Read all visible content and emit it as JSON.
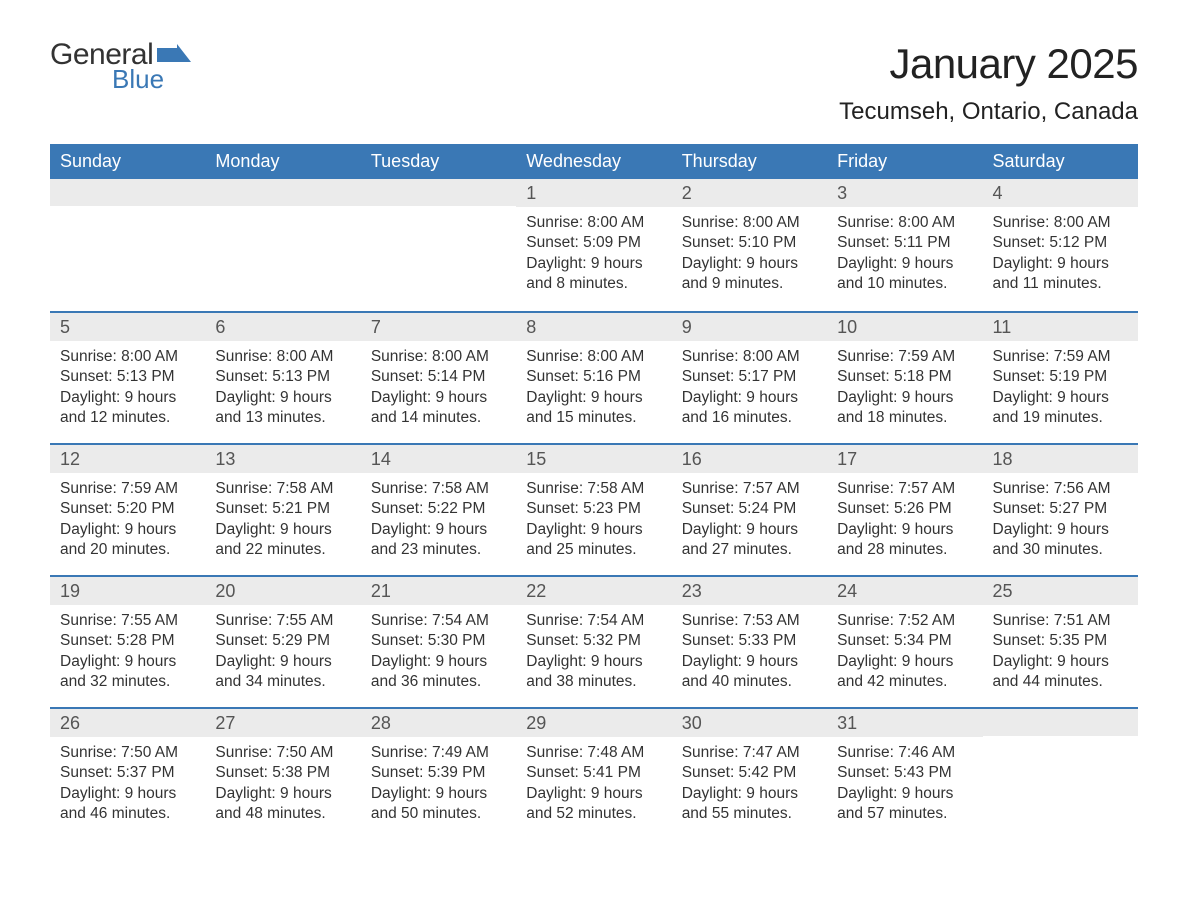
{
  "logo": {
    "word1": "General",
    "word2": "Blue",
    "flag_color": "#3a78b5"
  },
  "title": "January 2025",
  "location": "Tecumseh, Ontario, Canada",
  "colors": {
    "header_bg": "#3a78b5",
    "header_text": "#ffffff",
    "daynum_bg": "#ebebeb",
    "daynum_text": "#555555",
    "body_text": "#333333",
    "row_border": "#3a78b5",
    "page_bg": "#ffffff"
  },
  "typography": {
    "title_fontsize": 42,
    "location_fontsize": 24,
    "dow_fontsize": 18,
    "daynum_fontsize": 18,
    "content_fontsize": 15.5
  },
  "days_of_week": [
    "Sunday",
    "Monday",
    "Tuesday",
    "Wednesday",
    "Thursday",
    "Friday",
    "Saturday"
  ],
  "labels": {
    "sunrise": "Sunrise:",
    "sunset": "Sunset:",
    "daylight": "Daylight:"
  },
  "weeks": [
    [
      {
        "num": "",
        "sunrise": "",
        "sunset": "",
        "daylight": ""
      },
      {
        "num": "",
        "sunrise": "",
        "sunset": "",
        "daylight": ""
      },
      {
        "num": "",
        "sunrise": "",
        "sunset": "",
        "daylight": ""
      },
      {
        "num": "1",
        "sunrise": "8:00 AM",
        "sunset": "5:09 PM",
        "daylight": "9 hours and 8 minutes."
      },
      {
        "num": "2",
        "sunrise": "8:00 AM",
        "sunset": "5:10 PM",
        "daylight": "9 hours and 9 minutes."
      },
      {
        "num": "3",
        "sunrise": "8:00 AM",
        "sunset": "5:11 PM",
        "daylight": "9 hours and 10 minutes."
      },
      {
        "num": "4",
        "sunrise": "8:00 AM",
        "sunset": "5:12 PM",
        "daylight": "9 hours and 11 minutes."
      }
    ],
    [
      {
        "num": "5",
        "sunrise": "8:00 AM",
        "sunset": "5:13 PM",
        "daylight": "9 hours and 12 minutes."
      },
      {
        "num": "6",
        "sunrise": "8:00 AM",
        "sunset": "5:13 PM",
        "daylight": "9 hours and 13 minutes."
      },
      {
        "num": "7",
        "sunrise": "8:00 AM",
        "sunset": "5:14 PM",
        "daylight": "9 hours and 14 minutes."
      },
      {
        "num": "8",
        "sunrise": "8:00 AM",
        "sunset": "5:16 PM",
        "daylight": "9 hours and 15 minutes."
      },
      {
        "num": "9",
        "sunrise": "8:00 AM",
        "sunset": "5:17 PM",
        "daylight": "9 hours and 16 minutes."
      },
      {
        "num": "10",
        "sunrise": "7:59 AM",
        "sunset": "5:18 PM",
        "daylight": "9 hours and 18 minutes."
      },
      {
        "num": "11",
        "sunrise": "7:59 AM",
        "sunset": "5:19 PM",
        "daylight": "9 hours and 19 minutes."
      }
    ],
    [
      {
        "num": "12",
        "sunrise": "7:59 AM",
        "sunset": "5:20 PM",
        "daylight": "9 hours and 20 minutes."
      },
      {
        "num": "13",
        "sunrise": "7:58 AM",
        "sunset": "5:21 PM",
        "daylight": "9 hours and 22 minutes."
      },
      {
        "num": "14",
        "sunrise": "7:58 AM",
        "sunset": "5:22 PM",
        "daylight": "9 hours and 23 minutes."
      },
      {
        "num": "15",
        "sunrise": "7:58 AM",
        "sunset": "5:23 PM",
        "daylight": "9 hours and 25 minutes."
      },
      {
        "num": "16",
        "sunrise": "7:57 AM",
        "sunset": "5:24 PM",
        "daylight": "9 hours and 27 minutes."
      },
      {
        "num": "17",
        "sunrise": "7:57 AM",
        "sunset": "5:26 PM",
        "daylight": "9 hours and 28 minutes."
      },
      {
        "num": "18",
        "sunrise": "7:56 AM",
        "sunset": "5:27 PM",
        "daylight": "9 hours and 30 minutes."
      }
    ],
    [
      {
        "num": "19",
        "sunrise": "7:55 AM",
        "sunset": "5:28 PM",
        "daylight": "9 hours and 32 minutes."
      },
      {
        "num": "20",
        "sunrise": "7:55 AM",
        "sunset": "5:29 PM",
        "daylight": "9 hours and 34 minutes."
      },
      {
        "num": "21",
        "sunrise": "7:54 AM",
        "sunset": "5:30 PM",
        "daylight": "9 hours and 36 minutes."
      },
      {
        "num": "22",
        "sunrise": "7:54 AM",
        "sunset": "5:32 PM",
        "daylight": "9 hours and 38 minutes."
      },
      {
        "num": "23",
        "sunrise": "7:53 AM",
        "sunset": "5:33 PM",
        "daylight": "9 hours and 40 minutes."
      },
      {
        "num": "24",
        "sunrise": "7:52 AM",
        "sunset": "5:34 PM",
        "daylight": "9 hours and 42 minutes."
      },
      {
        "num": "25",
        "sunrise": "7:51 AM",
        "sunset": "5:35 PM",
        "daylight": "9 hours and 44 minutes."
      }
    ],
    [
      {
        "num": "26",
        "sunrise": "7:50 AM",
        "sunset": "5:37 PM",
        "daylight": "9 hours and 46 minutes."
      },
      {
        "num": "27",
        "sunrise": "7:50 AM",
        "sunset": "5:38 PM",
        "daylight": "9 hours and 48 minutes."
      },
      {
        "num": "28",
        "sunrise": "7:49 AM",
        "sunset": "5:39 PM",
        "daylight": "9 hours and 50 minutes."
      },
      {
        "num": "29",
        "sunrise": "7:48 AM",
        "sunset": "5:41 PM",
        "daylight": "9 hours and 52 minutes."
      },
      {
        "num": "30",
        "sunrise": "7:47 AM",
        "sunset": "5:42 PM",
        "daylight": "9 hours and 55 minutes."
      },
      {
        "num": "31",
        "sunrise": "7:46 AM",
        "sunset": "5:43 PM",
        "daylight": "9 hours and 57 minutes."
      },
      {
        "num": "",
        "sunrise": "",
        "sunset": "",
        "daylight": ""
      }
    ]
  ]
}
